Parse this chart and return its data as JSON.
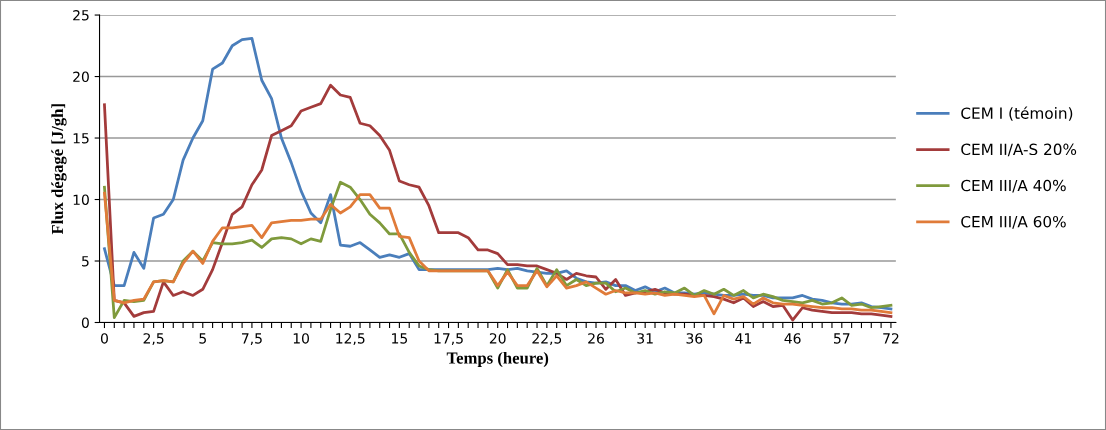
{
  "chart_data": {
    "type": "line",
    "xlabel": "Temps (heure)",
    "ylabel": "Flux dégagé [J/gh]",
    "categories": [
      "0",
      null,
      null,
      null,
      null,
      "2,5",
      null,
      null,
      null,
      null,
      "5",
      null,
      null,
      null,
      null,
      "7,5",
      null,
      null,
      null,
      null,
      "10",
      null,
      null,
      null,
      null,
      "12,5",
      null,
      null,
      null,
      null,
      "15",
      null,
      null,
      null,
      null,
      "17,5",
      null,
      null,
      null,
      null,
      "20",
      null,
      null,
      null,
      null,
      "22,5",
      null,
      null,
      null,
      null,
      "26",
      null,
      null,
      null,
      null,
      "31",
      null,
      null,
      null,
      null,
      "36",
      null,
      null,
      null,
      null,
      "41",
      null,
      null,
      null,
      null,
      "46",
      null,
      null,
      null,
      null,
      "57",
      null,
      null,
      null,
      null,
      "72"
    ],
    "ylim": [
      0,
      25
    ],
    "yticks": [
      0,
      5,
      10,
      15,
      20,
      25
    ],
    "grid": "y",
    "legend": "right",
    "marker": "none",
    "line_style": "solid",
    "series": [
      {
        "name": "CEM I (témoin)",
        "color": "#4a7ebb",
        "values": [
          6.0,
          3.0,
          3.0,
          5.7,
          4.4,
          8.5,
          8.8,
          10.0,
          13.2,
          15.0,
          16.4,
          20.6,
          21.1,
          22.5,
          23.0,
          23.1,
          19.7,
          18.2,
          15.0,
          13.0,
          10.7,
          8.9,
          8.1,
          10.4,
          6.3,
          6.2,
          6.5,
          5.9,
          5.3,
          5.5,
          5.3,
          5.6,
          4.3,
          4.3,
          4.3,
          4.3,
          4.3,
          4.3,
          4.3,
          4.3,
          4.4,
          4.3,
          4.4,
          4.2,
          4.1,
          4.0,
          4.0,
          4.2,
          3.6,
          3.3,
          3.2,
          3.3,
          3.0,
          3.0,
          2.6,
          2.9,
          2.5,
          2.8,
          2.4,
          2.4,
          2.3,
          2.4,
          2.3,
          2.2,
          2.2,
          2.3,
          2.2,
          2.2,
          2.0,
          2.0,
          2.0,
          2.2,
          1.9,
          1.8,
          1.6,
          1.5,
          1.5,
          1.6,
          1.3,
          1.2,
          1.1
        ]
      },
      {
        "name": "CEM II/A-S 20%",
        "color": "#a33b3b",
        "values": [
          17.7,
          1.8,
          1.6,
          0.5,
          0.8,
          0.9,
          3.3,
          2.2,
          2.5,
          2.2,
          2.7,
          4.3,
          6.5,
          8.8,
          9.4,
          11.2,
          12.4,
          15.2,
          15.6,
          16.0,
          17.2,
          17.5,
          17.8,
          19.3,
          18.5,
          18.3,
          16.2,
          16.0,
          15.2,
          14.0,
          11.5,
          11.2,
          11.0,
          9.5,
          7.3,
          7.3,
          7.3,
          6.9,
          5.9,
          5.9,
          5.6,
          4.7,
          4.7,
          4.6,
          4.6,
          4.3,
          4.0,
          3.5,
          4.0,
          3.8,
          3.7,
          2.7,
          3.5,
          2.2,
          2.4,
          2.5,
          2.7,
          2.4,
          2.3,
          2.3,
          2.2,
          2.2,
          2.1,
          1.9,
          1.6,
          2.0,
          1.3,
          1.7,
          1.3,
          1.4,
          0.2,
          1.2,
          1.0,
          0.9,
          0.8,
          0.8,
          0.8,
          0.7,
          0.7,
          0.6,
          0.5
        ]
      },
      {
        "name": "CEM III/A 40%",
        "color": "#7f9a3c",
        "values": [
          11.0,
          0.4,
          1.8,
          1.7,
          1.8,
          3.3,
          3.4,
          3.3,
          5.0,
          5.8,
          5.0,
          6.5,
          6.4,
          6.4,
          6.5,
          6.7,
          6.1,
          6.8,
          6.9,
          6.8,
          6.4,
          6.8,
          6.6,
          9.2,
          11.4,
          11.0,
          10.0,
          8.8,
          8.1,
          7.2,
          7.2,
          5.7,
          4.6,
          4.3,
          4.2,
          4.2,
          4.2,
          4.2,
          4.2,
          4.2,
          2.8,
          4.3,
          2.8,
          2.8,
          4.4,
          3.0,
          4.3,
          3.0,
          3.5,
          3.0,
          3.2,
          3.2,
          2.5,
          2.8,
          2.4,
          2.6,
          2.3,
          2.5,
          2.4,
          2.8,
          2.2,
          2.6,
          2.3,
          2.7,
          2.2,
          2.6,
          2.0,
          2.3,
          2.1,
          1.8,
          1.7,
          1.6,
          1.8,
          1.5,
          1.6,
          2.0,
          1.4,
          1.5,
          1.2,
          1.3,
          1.4
        ]
      },
      {
        "name": "CEM III/A 60%",
        "color": "#e07b39",
        "values": [
          10.5,
          1.8,
          1.6,
          1.8,
          1.9,
          3.3,
          3.4,
          3.3,
          4.8,
          5.8,
          4.8,
          6.6,
          7.7,
          7.7,
          7.8,
          7.9,
          6.9,
          8.1,
          8.2,
          8.3,
          8.3,
          8.4,
          8.4,
          9.6,
          8.9,
          9.4,
          10.4,
          10.4,
          9.3,
          9.3,
          7.0,
          6.9,
          5.0,
          4.2,
          4.2,
          4.2,
          4.2,
          4.2,
          4.2,
          4.2,
          3.0,
          4.1,
          3.0,
          3.0,
          4.2,
          2.9,
          3.8,
          2.8,
          3.0,
          3.3,
          2.8,
          2.3,
          2.6,
          2.4,
          2.4,
          2.3,
          2.4,
          2.2,
          2.3,
          2.2,
          2.1,
          2.2,
          0.7,
          2.2,
          1.9,
          2.1,
          1.5,
          2.0,
          1.6,
          1.5,
          1.5,
          1.4,
          1.3,
          1.2,
          1.2,
          1.1,
          1.1,
          1.0,
          1.0,
          0.9,
          0.8
        ]
      }
    ]
  }
}
